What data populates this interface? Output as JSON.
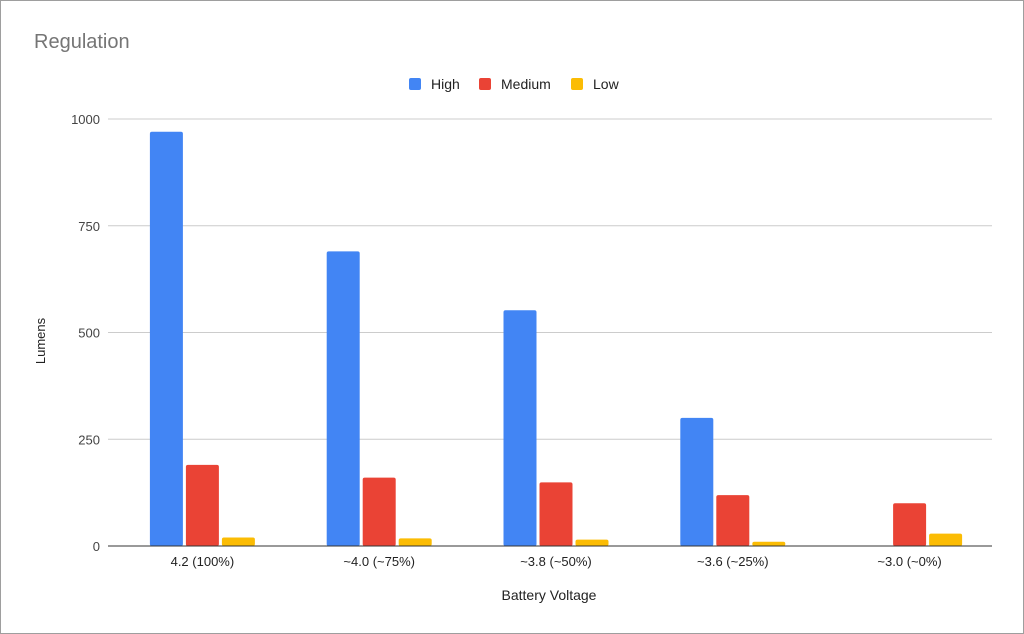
{
  "chart_data": {
    "type": "bar",
    "title": "Regulation",
    "xlabel": "Battery Voltage",
    "ylabel": "Lumens",
    "categories": [
      "4.2 (100%)",
      "~4.0 (~75%)",
      "~3.8 (~50%)",
      "~3.6 (~25%)",
      "~3.0 (~0%)"
    ],
    "series": [
      {
        "name": "High",
        "color": "#4285F4",
        "values": [
          970,
          690,
          552,
          300,
          0
        ]
      },
      {
        "name": "Medium",
        "color": "#EA4335",
        "values": [
          190,
          160,
          149,
          119,
          100
        ]
      },
      {
        "name": "Low",
        "color": "#FBBC04",
        "values": [
          20,
          18,
          15,
          10,
          29
        ]
      }
    ],
    "yticks": [
      0,
      250,
      500,
      750,
      1000
    ],
    "ylim": [
      0,
      1000
    ],
    "grid": true,
    "legend": "top-center"
  }
}
